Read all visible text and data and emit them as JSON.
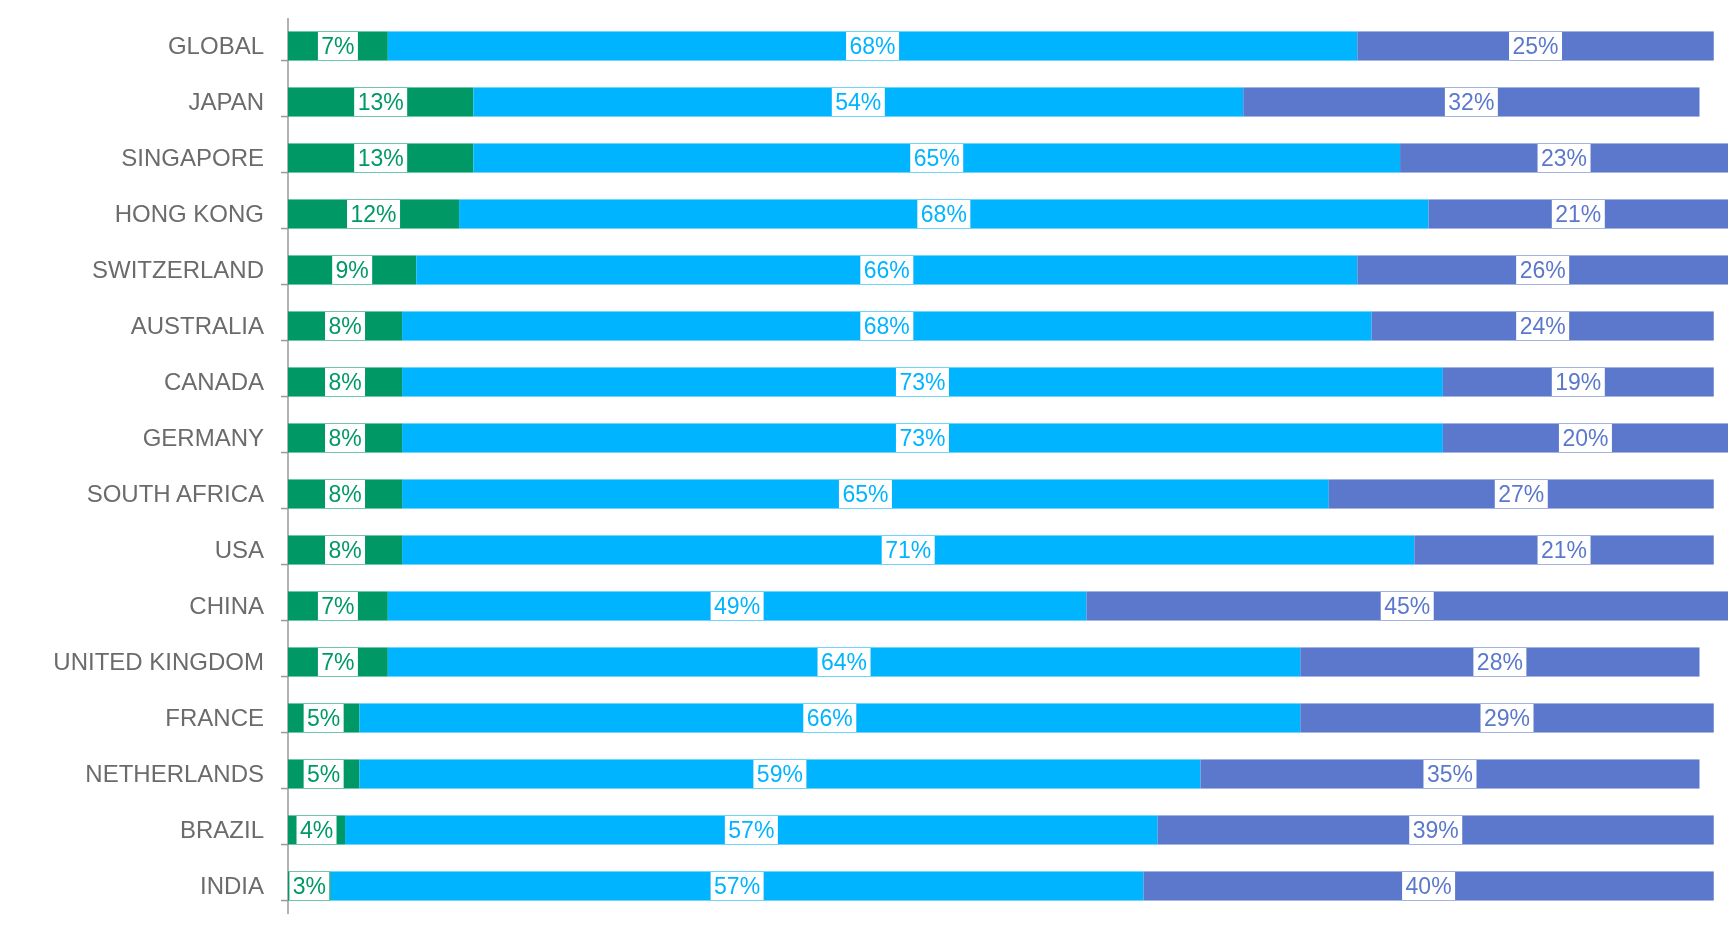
{
  "chart_data": {
    "type": "bar",
    "orientation": "horizontal",
    "stacked": true,
    "categories": [
      "GLOBAL",
      "JAPAN",
      "SINGAPORE",
      "HONG KONG",
      "SWITZERLAND",
      "AUSTRALIA",
      "CANADA",
      "GERMANY",
      "SOUTH AFRICA",
      "USA",
      "CHINA",
      "UNITED KINGDOM",
      "FRANCE",
      "NETHERLANDS",
      "BRAZIL",
      "INDIA"
    ],
    "series": [
      {
        "color": "#009966",
        "values": [
          7,
          13,
          13,
          12,
          9,
          8,
          8,
          8,
          8,
          8,
          7,
          7,
          5,
          5,
          4,
          3
        ],
        "value_labels": [
          "7%",
          "13%",
          "13%",
          "12%",
          "9%",
          "8%",
          "8%",
          "8%",
          "8%",
          "8%",
          "7%",
          "7%",
          "5%",
          "5%",
          "4%",
          "3%"
        ]
      },
      {
        "color": "#00b4ff",
        "values": [
          68,
          54,
          65,
          68,
          66,
          68,
          73,
          73,
          65,
          71,
          49,
          64,
          66,
          59,
          57,
          57
        ],
        "value_labels": [
          "68%",
          "54%",
          "65%",
          "68%",
          "66%",
          "68%",
          "73%",
          "73%",
          "65%",
          "71%",
          "49%",
          "64%",
          "66%",
          "59%",
          "57%",
          "57%"
        ]
      },
      {
        "color": "#5b78cc",
        "values": [
          25,
          32,
          23,
          21,
          26,
          24,
          19,
          20,
          27,
          21,
          45,
          28,
          29,
          35,
          39,
          40
        ],
        "value_labels": [
          "25%",
          "32%",
          "23%",
          "21%",
          "26%",
          "24%",
          "19%",
          "20%",
          "27%",
          "21%",
          "45%",
          "28%",
          "29%",
          "35%",
          "39%",
          "40%"
        ]
      }
    ]
  }
}
